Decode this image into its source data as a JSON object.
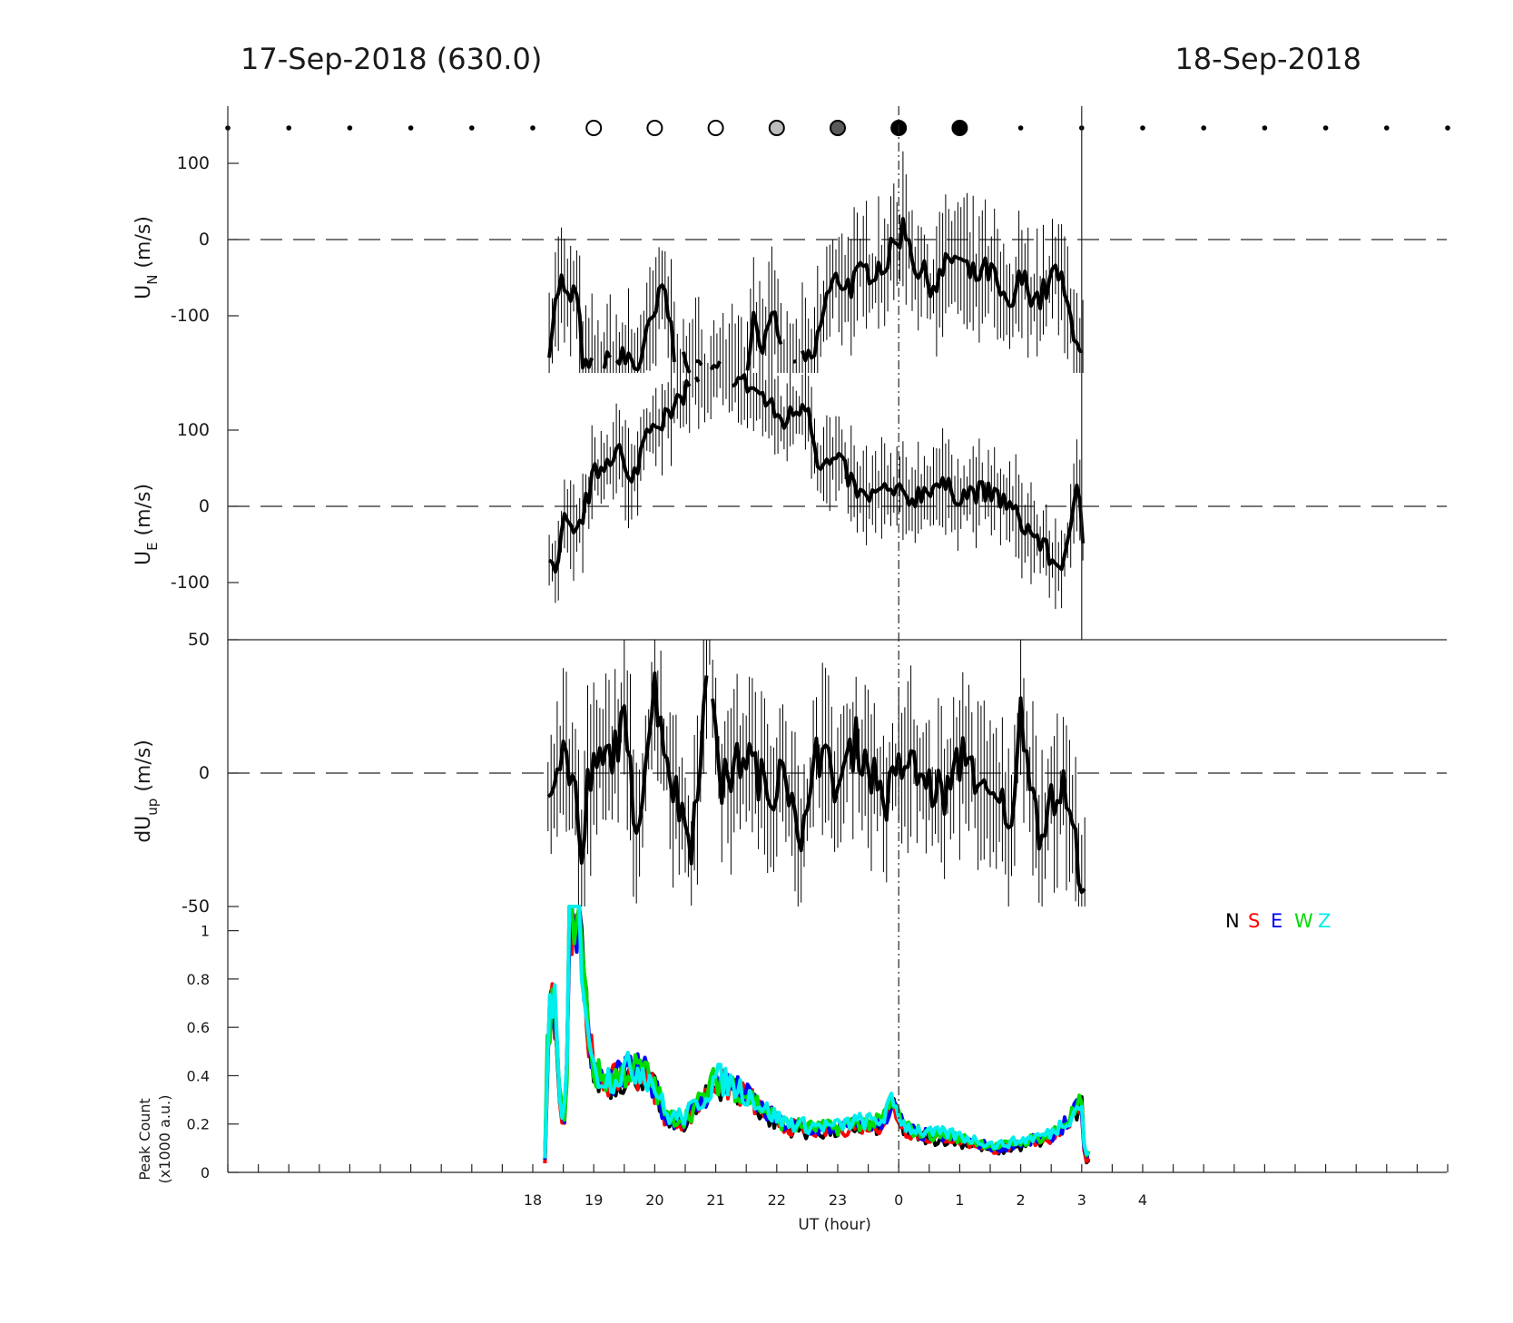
{
  "header": {
    "left_date": "17-Sep-2018 (630.0)",
    "right_date": "18-Sep-2018"
  },
  "chart_data": [
    {
      "type": "line",
      "name": "un",
      "ylabel": "U",
      "ylabel_sub": "N",
      "ylabel_unit": " (m/s)",
      "ylim": [
        -175,
        175
      ],
      "yticks": [
        100,
        0,
        -100
      ],
      "zero_line": true,
      "start": 18.27,
      "end": 3.03,
      "anchors": [
        [
          18.27,
          -135
        ],
        [
          18.45,
          -50
        ],
        [
          18.55,
          -85
        ],
        [
          18.7,
          -65
        ],
        [
          18.85,
          -175
        ],
        [
          19.6,
          -155
        ],
        [
          19.7,
          -170
        ],
        [
          20.0,
          -100
        ],
        [
          20.15,
          -60
        ],
        [
          20.35,
          -160
        ],
        [
          20.6,
          -175
        ],
        [
          21.5,
          -175
        ],
        [
          21.6,
          -100
        ],
        [
          21.8,
          -140
        ],
        [
          22.0,
          -100
        ],
        [
          22.1,
          -175
        ],
        [
          22.6,
          -160
        ],
        [
          22.8,
          -80
        ],
        [
          23.0,
          -50
        ],
        [
          23.2,
          -60
        ],
        [
          23.5,
          -40
        ],
        [
          23.8,
          -30
        ],
        [
          24.1,
          20
        ],
        [
          24.3,
          -40
        ],
        [
          24.6,
          -60
        ],
        [
          24.9,
          -20
        ],
        [
          25.2,
          -50
        ],
        [
          25.5,
          -40
        ],
        [
          25.8,
          -100
        ],
        [
          26.0,
          -50
        ],
        [
          26.3,
          -80
        ],
        [
          26.6,
          -40
        ],
        [
          26.8,
          -100
        ],
        [
          26.95,
          -130
        ],
        [
          27.03,
          -155
        ]
      ],
      "amp": 20,
      "err_amp": 60
    },
    {
      "type": "line",
      "name": "ue",
      "ylabel": "U",
      "ylabel_sub": "E",
      "ylabel_unit": " (m/s)",
      "ylim": [
        -175,
        175
      ],
      "yticks": [
        100,
        0,
        -100
      ],
      "zero_line": true,
      "start": 18.27,
      "end": 3.03,
      "anchors": [
        [
          18.27,
          -80
        ],
        [
          18.4,
          -95
        ],
        [
          18.5,
          -20
        ],
        [
          18.7,
          -45
        ],
        [
          19.0,
          40
        ],
        [
          19.4,
          80
        ],
        [
          19.6,
          20
        ],
        [
          19.9,
          110
        ],
        [
          20.3,
          120
        ],
        [
          20.6,
          170
        ],
        [
          21.2,
          175
        ],
        [
          21.7,
          150
        ],
        [
          22.1,
          110
        ],
        [
          22.5,
          140
        ],
        [
          22.7,
          50
        ],
        [
          23.0,
          60
        ],
        [
          23.4,
          10
        ],
        [
          23.8,
          20
        ],
        [
          24.2,
          10
        ],
        [
          24.6,
          30
        ],
        [
          25.0,
          15
        ],
        [
          25.3,
          20
        ],
        [
          25.7,
          10
        ],
        [
          26.0,
          -20
        ],
        [
          26.3,
          -45
        ],
        [
          26.6,
          -80
        ],
        [
          26.8,
          -50
        ],
        [
          26.95,
          40
        ],
        [
          27.03,
          -60
        ]
      ],
      "amp": 15,
      "err_amp": 45
    },
    {
      "type": "line",
      "name": "dup",
      "ylabel": "dU",
      "ylabel_sub": "up",
      "ylabel_unit": " (m/s)",
      "ylim": [
        -50,
        50
      ],
      "yticks": [
        50,
        0,
        -50
      ],
      "zero_line": true,
      "start": 18.25,
      "end": 3.1,
      "anchors": [
        [
          18.25,
          -2
        ],
        [
          18.5,
          8
        ],
        [
          18.7,
          -5
        ],
        [
          18.8,
          -40
        ],
        [
          18.9,
          -3
        ],
        [
          19.2,
          5
        ],
        [
          19.5,
          17
        ],
        [
          19.7,
          -20
        ],
        [
          20.0,
          32
        ],
        [
          20.3,
          -5
        ],
        [
          20.6,
          -25
        ],
        [
          20.9,
          45
        ],
        [
          21.1,
          -5
        ],
        [
          21.5,
          8
        ],
        [
          21.9,
          -10
        ],
        [
          22.1,
          10
        ],
        [
          22.4,
          -35
        ],
        [
          22.6,
          12
        ],
        [
          23.0,
          -5
        ],
        [
          23.3,
          12
        ],
        [
          23.8,
          -10
        ],
        [
          24.1,
          5
        ],
        [
          24.5,
          -5
        ],
        [
          24.8,
          -8
        ],
        [
          25.1,
          10
        ],
        [
          25.4,
          -10
        ],
        [
          25.9,
          -15
        ],
        [
          26.0,
          25
        ],
        [
          26.3,
          -20
        ],
        [
          26.7,
          -5
        ],
        [
          26.9,
          -28
        ],
        [
          27.1,
          -45
        ]
      ],
      "amp": 9,
      "err_amp": 22
    },
    {
      "type": "line",
      "name": "count",
      "ylabel": "Peak Count",
      "ylabel2": "(x1000 a.u.)",
      "ylim": [
        0,
        1.1
      ],
      "yticks": [
        0,
        0.2,
        0.4,
        0.6,
        0.8,
        1
      ],
      "zero_line": true,
      "start": 18.2,
      "end": 3.15,
      "anchors": [
        [
          18.2,
          0.05
        ],
        [
          18.25,
          0.6
        ],
        [
          18.35,
          0.72
        ],
        [
          18.45,
          0.25
        ],
        [
          18.55,
          0.25
        ],
        [
          18.6,
          1.1
        ],
        [
          18.75,
          1.1
        ],
        [
          18.85,
          0.75
        ],
        [
          19.0,
          0.4
        ],
        [
          19.3,
          0.38
        ],
        [
          19.6,
          0.42
        ],
        [
          19.8,
          0.42
        ],
        [
          20.0,
          0.35
        ],
        [
          20.2,
          0.22
        ],
        [
          20.5,
          0.22
        ],
        [
          20.8,
          0.3
        ],
        [
          21.0,
          0.38
        ],
        [
          21.3,
          0.35
        ],
        [
          21.6,
          0.3
        ],
        [
          21.8,
          0.25
        ],
        [
          22.1,
          0.2
        ],
        [
          22.5,
          0.18
        ],
        [
          23.0,
          0.18
        ],
        [
          23.3,
          0.2
        ],
        [
          23.7,
          0.2
        ],
        [
          23.9,
          0.28
        ],
        [
          24.1,
          0.18
        ],
        [
          24.5,
          0.15
        ],
        [
          24.8,
          0.15
        ],
        [
          25.3,
          0.12
        ],
        [
          25.6,
          0.1
        ],
        [
          26.0,
          0.12
        ],
        [
          26.5,
          0.15
        ],
        [
          26.8,
          0.22
        ],
        [
          27.0,
          0.28
        ],
        [
          27.05,
          0.05
        ],
        [
          27.15,
          0.08
        ]
      ],
      "legend": [
        {
          "label": "N",
          "color": "#000000"
        },
        {
          "label": "S",
          "color": "#ff0000"
        },
        {
          "label": "E",
          "color": "#0000ff"
        },
        {
          "label": "W",
          "color": "#00dd00"
        },
        {
          "label": "Z",
          "color": "#00eeee"
        }
      ],
      "xlabel": "UT (hour)",
      "xticks": [
        "18",
        "19",
        "20",
        "21",
        "22",
        "23",
        "0",
        "1",
        "2",
        "3",
        "4"
      ]
    }
  ],
  "moon_markers": [
    {
      "time": 13,
      "symbol": "dot"
    },
    {
      "time": 14,
      "symbol": "dot"
    },
    {
      "time": 15,
      "symbol": "dot"
    },
    {
      "time": 16,
      "symbol": "dot"
    },
    {
      "time": 17,
      "symbol": "dot"
    },
    {
      "time": 18,
      "symbol": "dot"
    },
    {
      "time": 19,
      "symbol": "circle",
      "fill": "#ffffff"
    },
    {
      "time": 20,
      "symbol": "circle",
      "fill": "#ffffff"
    },
    {
      "time": 21,
      "symbol": "circle",
      "fill": "#ffffff"
    },
    {
      "time": 22,
      "symbol": "circle",
      "fill": "#bdbdbd"
    },
    {
      "time": 23,
      "symbol": "circle",
      "fill": "#5a5a5a"
    },
    {
      "time": 24,
      "symbol": "circle",
      "fill": "#000000"
    },
    {
      "time": 25,
      "symbol": "circle",
      "fill": "#000000"
    },
    {
      "time": 26,
      "symbol": "dot"
    },
    {
      "time": 27,
      "symbol": "dot"
    },
    {
      "time": 28,
      "symbol": "dot"
    },
    {
      "time": 29,
      "symbol": "dot"
    },
    {
      "time": 30,
      "symbol": "dot"
    },
    {
      "time": 31,
      "symbol": "dot"
    },
    {
      "time": 32,
      "symbol": "dot"
    },
    {
      "time": 33,
      "symbol": "dot"
    }
  ],
  "midnight_line": 0,
  "end_line": 3
}
